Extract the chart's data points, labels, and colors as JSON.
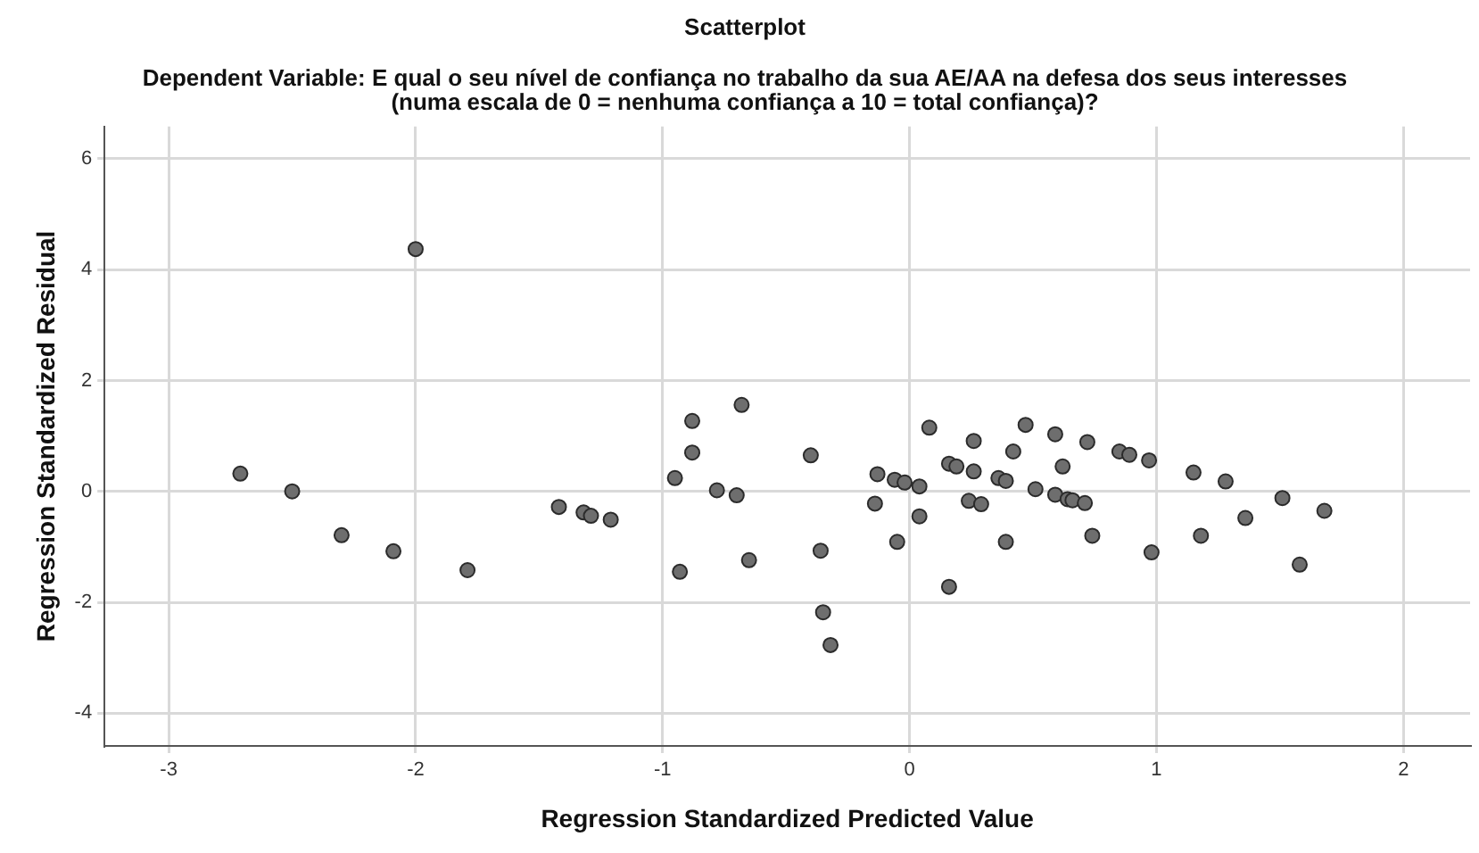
{
  "chart_data": {
    "type": "scatter",
    "title": "Scatterplot",
    "subtitle": "Dependent Variable: E qual o seu nível de confiança no trabalho da sua AE/AA na defesa dos seus interesses\n(numa escala de 0 = nenhuma confiança a 10 = total confiança)?",
    "xlabel": "Regression Standardized Predicted Value",
    "ylabel": "Regression Standardized Residual",
    "x": [
      -2.71,
      -2.5,
      -2.3,
      -2.09,
      -2.0,
      -1.79,
      -1.42,
      -1.32,
      -1.29,
      -1.21,
      -0.95,
      -0.88,
      -0.88,
      -0.68,
      -0.78,
      -0.7,
      -0.93,
      -0.65,
      -0.4,
      -0.36,
      -0.35,
      -0.32,
      -0.13,
      -0.14,
      -0.06,
      -0.02,
      0.04,
      0.04,
      -0.05,
      0.08,
      0.16,
      0.19,
      0.16,
      0.26,
      0.26,
      0.24,
      0.29,
      0.36,
      0.39,
      0.39,
      0.42,
      0.47,
      0.51,
      0.59,
      0.59,
      0.62,
      0.72,
      0.64,
      0.66,
      0.71,
      0.74,
      0.85,
      0.89,
      0.97,
      0.98,
      1.15,
      1.18,
      1.28,
      1.36,
      1.51,
      1.58,
      1.68
    ],
    "series": [
      {
        "color": "#6e6e6e",
        "values": [
          0.32,
          0.0,
          -0.79,
          -1.08,
          4.37,
          -1.42,
          -0.28,
          -0.38,
          -0.44,
          -0.51,
          0.24,
          1.27,
          0.7,
          1.56,
          0.02,
          -0.07,
          -1.45,
          -1.24,
          0.65,
          -1.07,
          -2.18,
          -2.77,
          0.31,
          -0.22,
          0.21,
          0.16,
          0.09,
          -0.45,
          -0.91,
          1.15,
          0.5,
          0.45,
          -1.72,
          0.91,
          0.36,
          -0.17,
          -0.23,
          0.24,
          0.19,
          -0.91,
          0.72,
          1.2,
          0.04,
          1.03,
          -0.06,
          0.45,
          0.89,
          -0.14,
          -0.16,
          -0.21,
          -0.8,
          0.72,
          0.66,
          0.56,
          -1.1,
          0.34,
          -0.8,
          0.18,
          -0.48,
          -0.12,
          -1.32,
          -0.35
        ]
      }
    ],
    "xlim": [
      -3.26,
      2.27
    ],
    "xticks": [
      -3,
      -2,
      -1,
      0,
      1,
      2
    ],
    "ylim": [
      -4.59,
      6.58
    ],
    "yticks": [
      -4,
      -2,
      0,
      2,
      4,
      6
    ],
    "grid": true,
    "marker": "circle"
  }
}
